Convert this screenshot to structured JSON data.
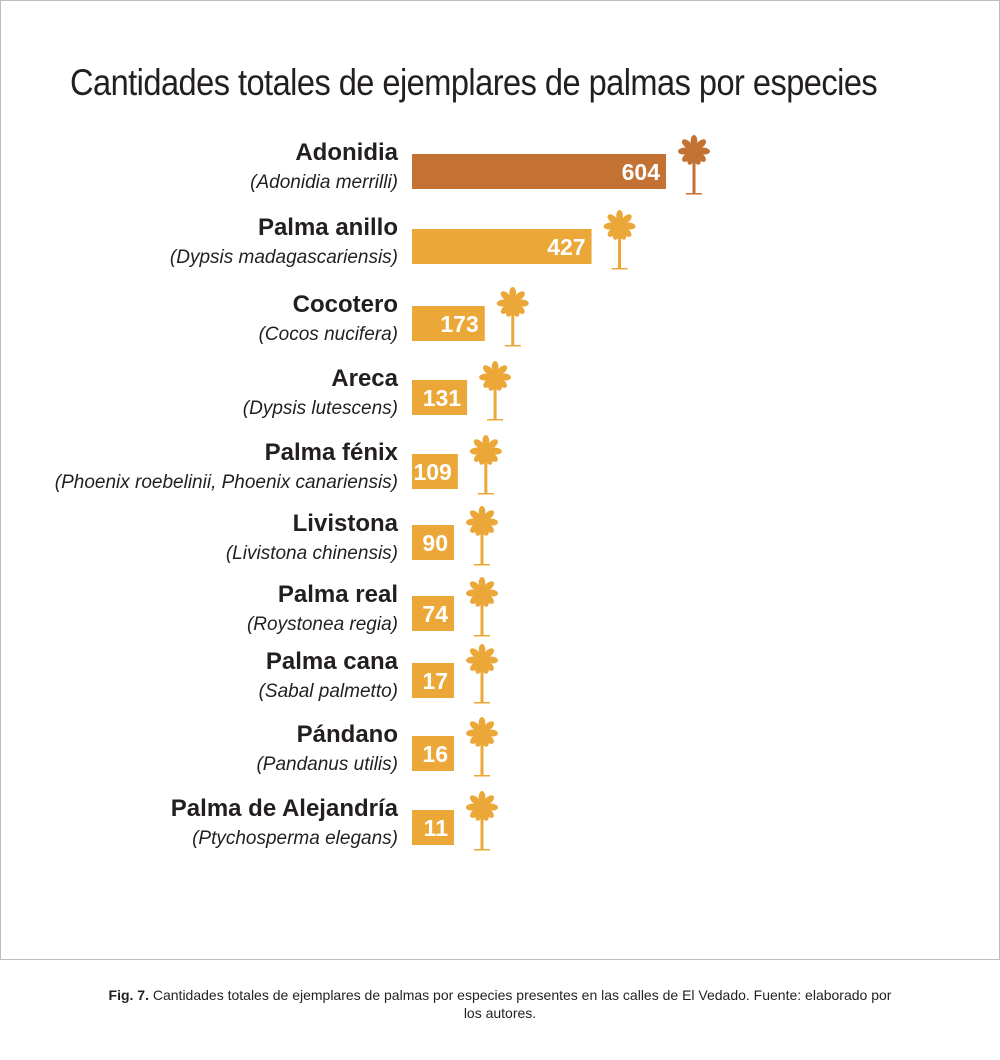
{
  "chart_data": {
    "type": "bar",
    "orientation": "horizontal",
    "title": "Cantidades totales de ejemplares de palmas por especies",
    "categories": [
      "Adonidia",
      "Palma anillo",
      "Cocotero",
      "Areca",
      "Palma fénix",
      "Livistona",
      "Palma real",
      "Palma cana",
      "Pándano",
      "Palma de Alejandría"
    ],
    "scientific_names": [
      "(Adonidia merrilli)",
      "(Dypsis madagascariensis)",
      "(Cocos nucifera)",
      "(Dypsis lutescens)",
      "(Phoenix roebelinii, Phoenix canariensis)",
      "(Livistona chinensis)",
      "(Roystonea regia)",
      "(Sabal palmetto)",
      "(Pandanus utilis)",
      "(Ptychosperma elegans)"
    ],
    "values": [
      604,
      427,
      173,
      131,
      109,
      90,
      74,
      17,
      16,
      11
    ],
    "highlight_color": "#c47134",
    "bar_color": "#eba737",
    "icon": "palm-tree-icon",
    "grid": false,
    "legend": "none"
  },
  "caption": {
    "label": "Fig. 7.",
    "text": "Cantidades totales de ejemplares de palmas por especies presentes en las calles de El Vedado. Fuente: elaborado por los autores."
  }
}
